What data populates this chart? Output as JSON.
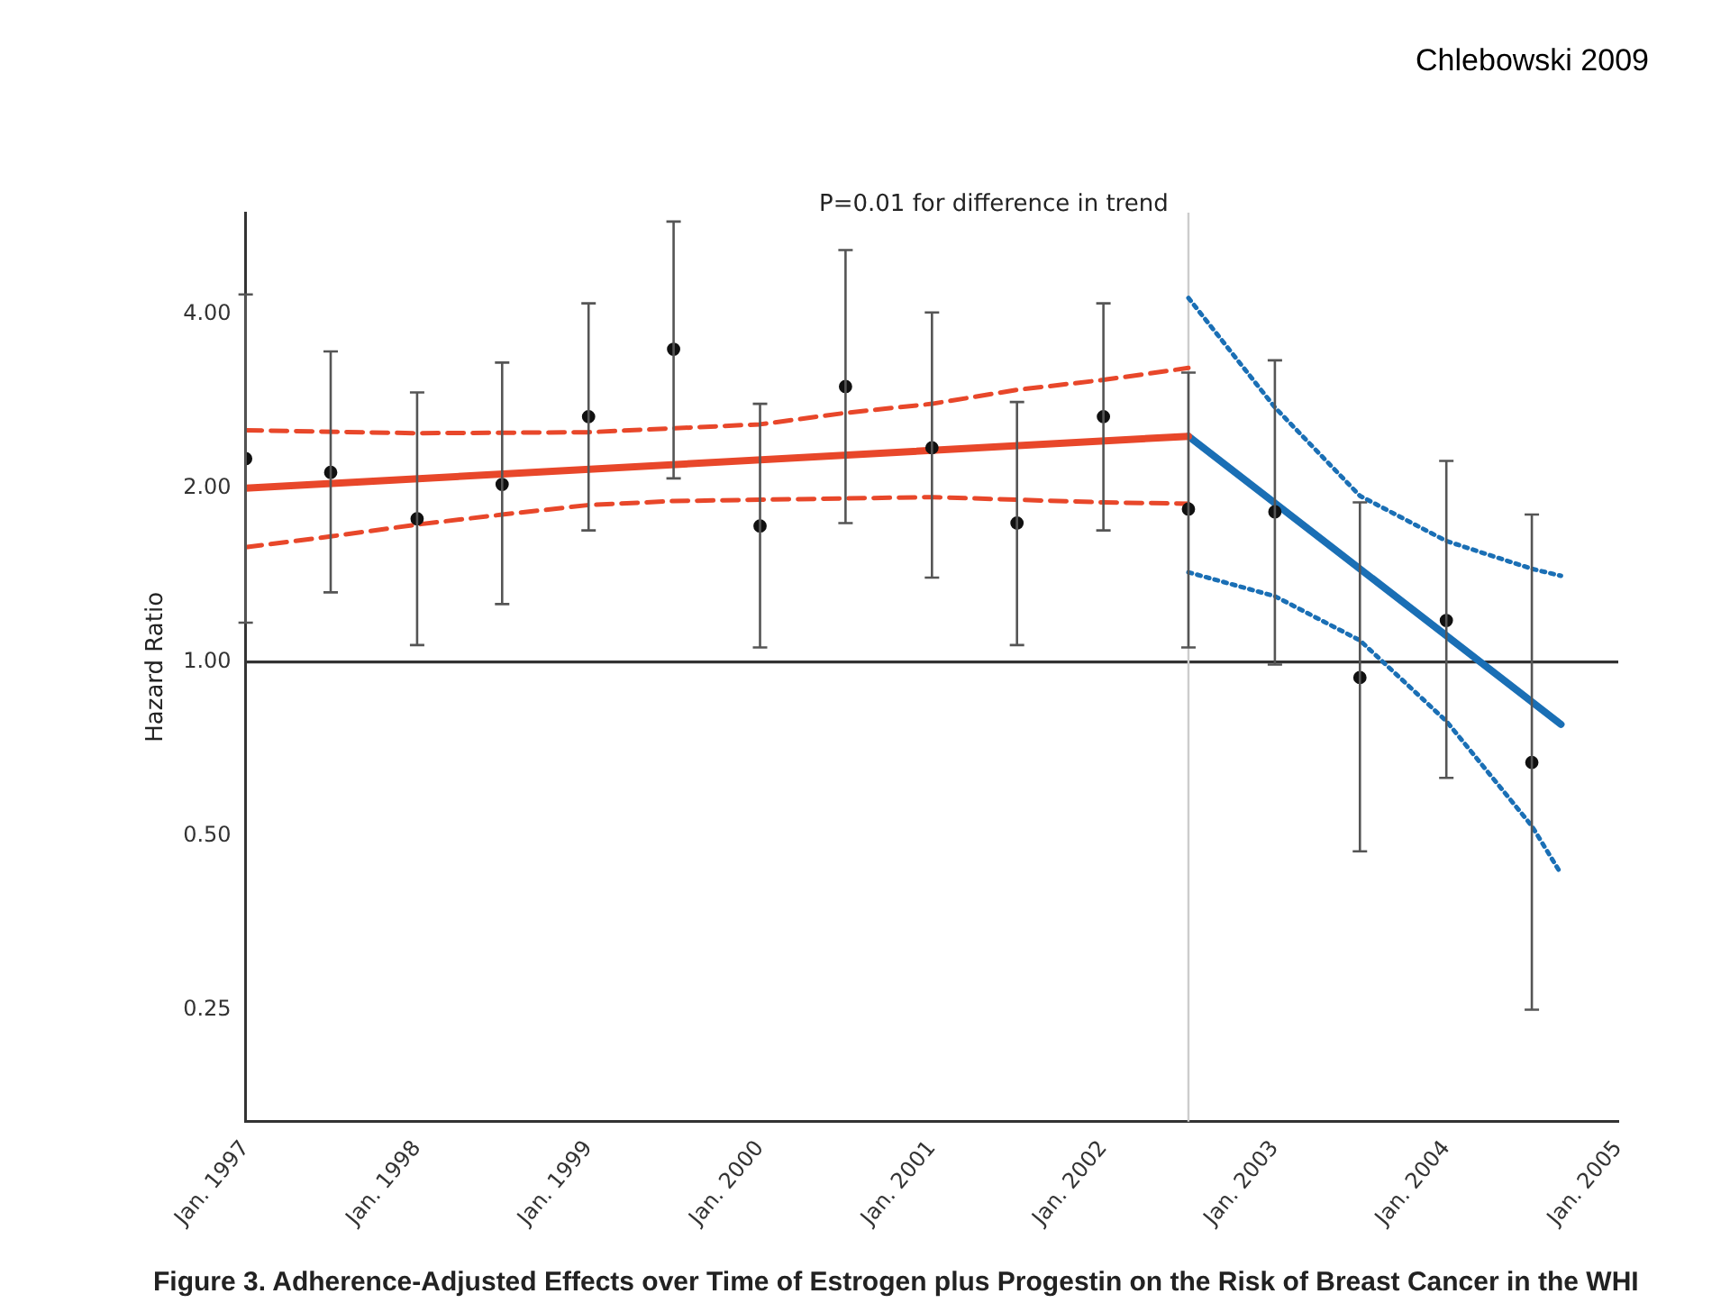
{
  "chart_data": {
    "type": "line",
    "ylabel": "Hazard Ratio",
    "annotations": [
      "P=0.01 for difference in trend",
      "Chlebowski 2009",
      "Figure 3. Adherence-Adjusted Effects over Time of Estrogen plus Progestin on the Risk of Breast Cancer in the WHI"
    ],
    "xlim": [
      "1997-01",
      "2005-01"
    ],
    "xticks": [
      {
        "value": "1997-01",
        "label": "Jan. 1997"
      },
      {
        "value": "1998-01",
        "label": "Jan. 1998"
      },
      {
        "value": "1999-01",
        "label": "Jan. 1999"
      },
      {
        "value": "2000-01",
        "label": "Jan. 2000"
      },
      {
        "value": "2001-01",
        "label": "Jan. 2001"
      },
      {
        "value": "2002-01",
        "label": "Jan. 2002"
      },
      {
        "value": "2003-01",
        "label": "Jan. 2003"
      },
      {
        "value": "2004-01",
        "label": "Jan. 2004"
      },
      {
        "value": "2005-01",
        "label": "Jan. 2005"
      }
    ],
    "ylim": [
      0.16,
      6
    ],
    "yticks": [
      0.25,
      {
        "value": 0.5,
        "label": "0.50"
      },
      {
        "value": 1,
        "label": "1.00"
      },
      {
        "value": 2,
        "label": "2.00"
      },
      {
        "value": 4,
        "label": "4.00"
      }
    ],
    "log": "y",
    "grid": false,
    "legend": false,
    "marker": "none",
    "ref_lines": [
      {
        "axis": "y",
        "value": 1,
        "color": "#333333"
      },
      {
        "axis": "x",
        "value": "2002-07",
        "color": "#cccccc"
      }
    ],
    "series": [
      {
        "color": "#e8472a",
        "line_style": "solid",
        "x": [
          "1997-01",
          "2002-07"
        ],
        "values": [
          2.0,
          2.46
        ]
      },
      {
        "color": "#e8472a",
        "line_style": "dashed",
        "x": [
          "1997-01",
          "1998-01",
          "1999-01",
          "2000-01",
          "2000-07",
          "2001-01",
          "2001-07",
          "2002-01",
          "2002-07"
        ],
        "values": [
          2.52,
          2.49,
          2.5,
          2.58,
          2.7,
          2.8,
          2.96,
          3.08,
          3.23
        ]
      },
      {
        "color": "#e8472a",
        "line_style": "dashed",
        "x": [
          "1997-01",
          "1997-07",
          "1998-01",
          "1998-07",
          "1999-01",
          "1999-07",
          "2000-01",
          "2000-07",
          "2001-01",
          "2001-07",
          "2002-01",
          "2002-07"
        ],
        "values": [
          1.58,
          1.65,
          1.73,
          1.8,
          1.87,
          1.9,
          1.91,
          1.92,
          1.93,
          1.91,
          1.89,
          1.88
        ]
      },
      {
        "color": "#1a6fb5",
        "line_style": "solid",
        "x": [
          "2002-07",
          "2004-09"
        ],
        "values": [
          2.46,
          0.78
        ]
      },
      {
        "color": "#1a6fb5",
        "line_style": "dotted",
        "x": [
          "2002-07",
          "2003-01",
          "2003-07",
          "2004-01",
          "2004-07",
          "2004-09"
        ],
        "values": [
          4.27,
          2.76,
          1.94,
          1.62,
          1.45,
          1.41
        ]
      },
      {
        "color": "#1a6fb5",
        "line_style": "dotted",
        "x": [
          "2002-07",
          "2003-01",
          "2003-07",
          "2004-01",
          "2004-07",
          "2004-09"
        ],
        "values": [
          1.43,
          1.3,
          1.09,
          0.79,
          0.52,
          0.43
        ]
      },
      {
        "type": "scatter",
        "marker": "circle",
        "color": "#111111",
        "x": [
          "1997-01",
          "1997-07",
          "1998-01",
          "1998-07",
          "1999-01",
          "1999-07",
          "2000-01",
          "2000-07",
          "2001-01",
          "2001-07",
          "2002-01",
          "2002-07",
          "2003-01",
          "2003-07",
          "2004-01",
          "2004-07"
        ],
        "values": [
          2.25,
          2.13,
          1.77,
          2.03,
          2.66,
          3.48,
          1.72,
          3.0,
          2.35,
          1.74,
          2.66,
          1.84,
          1.82,
          0.94,
          1.18,
          0.67
        ],
        "errors": [
          [
            1.17,
            4.33
          ],
          [
            1.32,
            3.45
          ],
          [
            1.07,
            2.93
          ],
          [
            1.26,
            3.3
          ],
          [
            1.69,
            4.18
          ],
          [
            2.08,
            5.79
          ],
          [
            1.06,
            2.8
          ],
          [
            1.74,
            5.17
          ],
          [
            1.4,
            4.03
          ],
          [
            1.07,
            2.82
          ],
          [
            1.69,
            4.18
          ],
          [
            1.06,
            3.17
          ],
          [
            0.99,
            3.33
          ],
          [
            0.47,
            1.89
          ],
          [
            0.63,
            2.23
          ],
          [
            0.25,
            1.8
          ]
        ]
      }
    ]
  }
}
